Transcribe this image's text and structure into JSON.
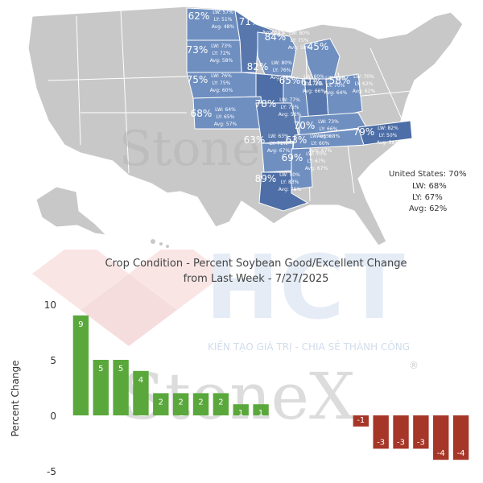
{
  "map": {
    "us_summary": {
      "current": "United States: 70%",
      "lw": "LW: 68%",
      "ly": "LY: 67%",
      "avg": "Avg: 62%"
    },
    "states": [
      {
        "abbr": "ND",
        "pct": "62%",
        "lw": "LW: 57%",
        "ly": "LY: 51%",
        "avg": "Avg: 48%"
      },
      {
        "abbr": "MN",
        "pct": "71%",
        "lw": "LW: 75%",
        "ly": "LY: 65%",
        "avg": "Avg: 60%"
      },
      {
        "abbr": "WI",
        "pct": "84%",
        "lw": "LW: 80%",
        "ly": "LY: 75%",
        "avg": "Avg: 58%"
      },
      {
        "abbr": "MI",
        "pct": "45%",
        "lw": "",
        "ly": "",
        "avg": ""
      },
      {
        "abbr": "SD",
        "pct": "73%",
        "lw": "LW: 73%",
        "ly": "LY: 72%",
        "avg": "Avg: 58%"
      },
      {
        "abbr": "IA",
        "pct": "82%",
        "lw": "LW: 80%",
        "ly": "LY: 76%",
        "avg": "Avg: 60%"
      },
      {
        "abbr": "IL",
        "pct": "65%",
        "lw": "LW: 60%",
        "ly": "LY: 72%",
        "avg": "Avg: 66%"
      },
      {
        "abbr": "IN",
        "pct": "61%",
        "lw": "LW: 60%",
        "ly": "LY: 70%",
        "avg": "Avg: 64%"
      },
      {
        "abbr": "OH",
        "pct": "58%",
        "lw": "LW: 70%",
        "ly": "LY: 62%",
        "avg": "Avg: 62%"
      },
      {
        "abbr": "NE",
        "pct": "75%",
        "lw": "LW: 76%",
        "ly": "LY: 75%",
        "avg": "Avg: 60%"
      },
      {
        "abbr": "KS",
        "pct": "68%",
        "lw": "LW: 64%",
        "ly": "LY: 65%",
        "avg": "Avg: 57%"
      },
      {
        "abbr": "MO",
        "pct": "78%",
        "lw": "LW: 77%",
        "ly": "LY: 75%",
        "avg": "Avg: 56%"
      },
      {
        "abbr": "KY",
        "pct": "70%",
        "lw": "LW: 73%",
        "ly": "LY: 66%",
        "avg": "Avg: 68%"
      },
      {
        "abbr": "NC",
        "pct": "79%",
        "lw": "LW: 82%",
        "ly": "LY: 50%",
        "avg": "Avg: 58%"
      },
      {
        "abbr": "TN",
        "pct": "63%",
        "lw": "LW: 66%",
        "ly": "LY: 60%",
        "avg": "Avg: 67%"
      },
      {
        "abbr": "AR",
        "pct": "63%",
        "lw": "LW: 63%",
        "ly": "LY: 71%",
        "avg": "Avg: 67%"
      },
      {
        "abbr": "MS",
        "pct": "69%",
        "lw": "LW: 70%",
        "ly": "LY: 67%",
        "avg": "Avg: 67%"
      },
      {
        "abbr": "LA",
        "pct": "89%",
        "lw": "LW: 90%",
        "ly": "LY: 83%",
        "avg": "Avg: 76%"
      }
    ]
  },
  "watermarks": {
    "brand": "StoneX",
    "brand_map": "Stone",
    "logo_text": "HCT",
    "slogan": "KIẾN TẠO GIÁ TRỊ - CHIA SẺ THÀNH CÔNG",
    "registered": "®"
  },
  "colors": {
    "map_state_gray": "#c8c8c8",
    "map_state_blue": "#6f8fc0",
    "map_state_dark": "#4d6ea6",
    "bar_positive": "#5aa83c",
    "bar_negative": "#a63628"
  },
  "chart_data": {
    "type": "bar",
    "title_line1": "Crop Condition - Percent Soybean Good/Excellent Change",
    "title_line2": "from Last Week - 7/27/2025",
    "xlabel": "",
    "ylabel": "Percent Change",
    "ylim": [
      -5,
      10
    ],
    "yticks": [
      -5,
      0,
      5,
      10
    ],
    "values": [
      9,
      5,
      5,
      4,
      2,
      2,
      2,
      2,
      1,
      1,
      0,
      0,
      0,
      0,
      -1,
      -3,
      -3,
      -3,
      -4,
      -4
    ],
    "data_labels": [
      "9",
      "5",
      "5",
      "4",
      "2",
      "2",
      "2",
      "2",
      "1",
      "1",
      "",
      "",
      "",
      "",
      "-1",
      "-3",
      "-3",
      "-3",
      "-4",
      "-4"
    ],
    "grid": false,
    "legend": "none"
  }
}
